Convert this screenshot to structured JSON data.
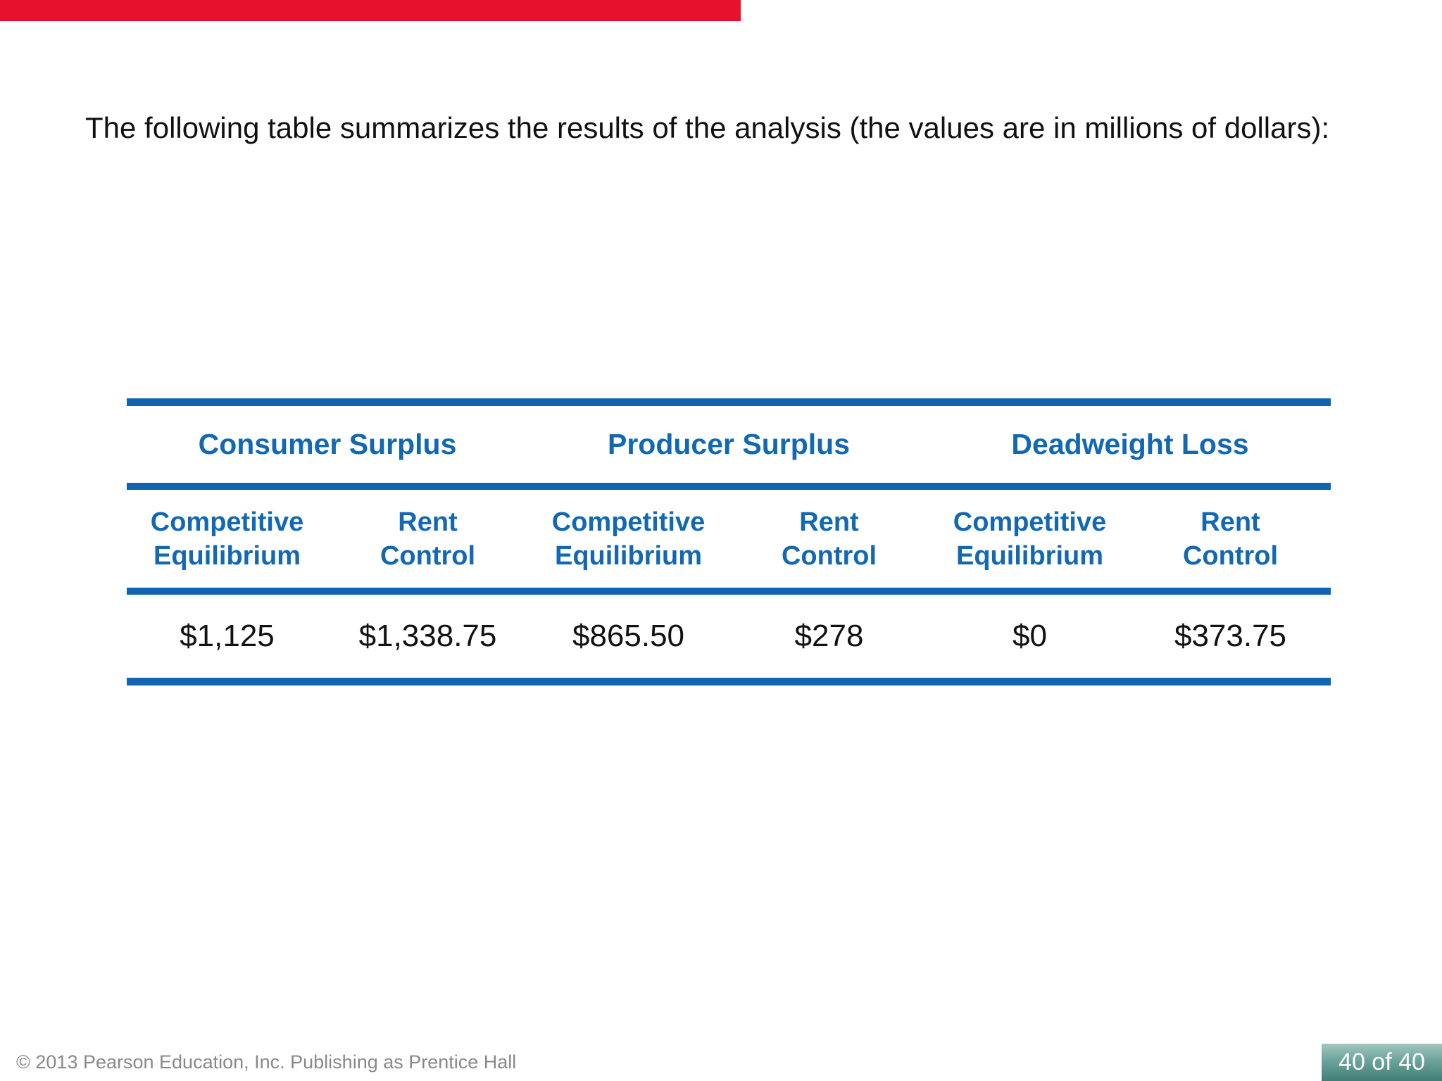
{
  "title": {
    "text": "The following table summarizes the results of the analysis (the values are in millions of dollars):"
  },
  "table": {
    "group_headers": [
      "Consumer Surplus",
      "Producer Surplus",
      "Deadweight Loss"
    ],
    "column_headers": [
      {
        "line1": "Competitive",
        "line2": "Equilibrium"
      },
      {
        "line1": "Rent",
        "line2": "Control"
      },
      {
        "line1": "Competitive",
        "line2": "Equilibrium"
      },
      {
        "line1": "Rent",
        "line2": "Control"
      },
      {
        "line1": "Competitive",
        "line2": "Equilibrium"
      },
      {
        "line1": "Rent",
        "line2": "Control"
      }
    ],
    "values": [
      "$1,125",
      "$1,338.75",
      "$865.50",
      "$278",
      "$0",
      "$373.75"
    ]
  },
  "footer": {
    "copyright": "© 2013 Pearson Education, Inc. Publishing as Prentice Hall",
    "page_indicator": "40 of 40"
  },
  "colors": {
    "accent_blue": "#1268b3",
    "rule_blue": "#1165b0",
    "red_bar": "#e8112d",
    "footer_gray": "#898989",
    "page_box_gradient_top": "#a2c6c1",
    "page_box_gradient_bottom": "#417e75",
    "value_text": "#111111"
  }
}
